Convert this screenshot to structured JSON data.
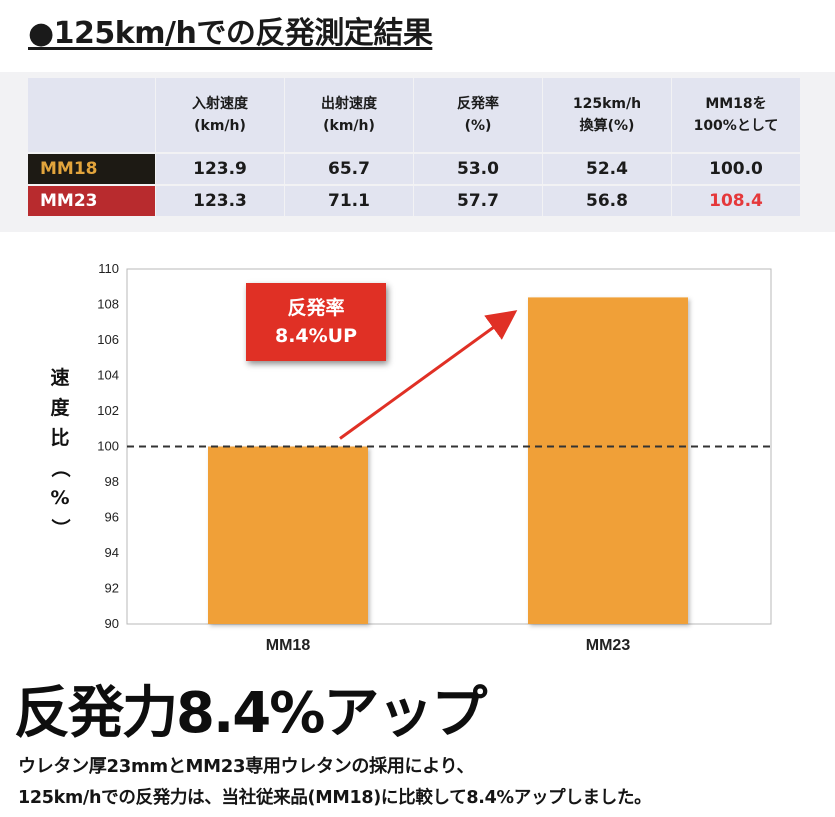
{
  "heading": "●125km/hでの反発測定結果",
  "table": {
    "headers": [
      [
        "入射速度",
        "(km/h)"
      ],
      [
        "出射速度",
        "(km/h)"
      ],
      [
        "反発率",
        "(%)"
      ],
      [
        "125km/h",
        "換算(%)"
      ],
      [
        "MM18を",
        "100%として"
      ]
    ],
    "rows": [
      {
        "label": "MM18",
        "values": [
          "123.9",
          "65.7",
          "53.0",
          "52.4",
          "100.0"
        ]
      },
      {
        "label": "MM23",
        "values": [
          "123.3",
          "71.1",
          "57.7",
          "56.8",
          "108.4"
        ]
      }
    ]
  },
  "chart_data": {
    "type": "bar",
    "categories": [
      "MM18",
      "MM23"
    ],
    "values": [
      100.0,
      108.4
    ],
    "title": "",
    "xlabel": "",
    "ylabel": "速度比（%）",
    "ylim": [
      90,
      110
    ],
    "yticks": [
      "90",
      "92",
      "94",
      "96",
      "98",
      "100",
      "102",
      "104",
      "106",
      "108",
      "110"
    ],
    "grid": false,
    "reference_line": 100,
    "annotation": [
      "反発率",
      "8.4%UP"
    ],
    "colors": {
      "bar": "#f0a038",
      "arrow": "#e03025",
      "dashed": "#333333"
    }
  },
  "big_title": "反発力8.4%アップ",
  "description": [
    "ウレタン厚23mmとMM23専用ウレタンの採用により、",
    "125km/hでの反発力は、当社従来品(MM18)に比較して8.4%アップしました。"
  ]
}
